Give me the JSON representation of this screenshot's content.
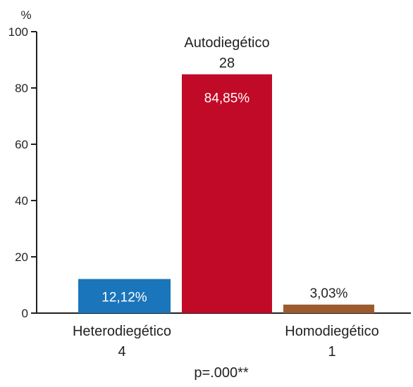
{
  "chart_data": {
    "type": "bar",
    "ylabel": "%",
    "ylim": [
      0,
      100
    ],
    "yticks": [
      0,
      20,
      40,
      60,
      80,
      100
    ],
    "grid": false,
    "legend": "none",
    "categories": [
      {
        "name": "Heterodiegético",
        "count": "4",
        "value": 12.12,
        "value_label": "12,12%",
        "color": "#1a75bb",
        "label_position": "inside"
      },
      {
        "name": "Autodiegético",
        "count": "28",
        "value": 84.85,
        "value_label": "84,85%",
        "color": "#c10a27",
        "label_position": "inside"
      },
      {
        "name": "Homodiegético",
        "count": "1",
        "value": 3.03,
        "value_label": "3,03%",
        "color": "#9c5b2e",
        "label_position": "above"
      }
    ],
    "annotation": "p=.000**"
  }
}
